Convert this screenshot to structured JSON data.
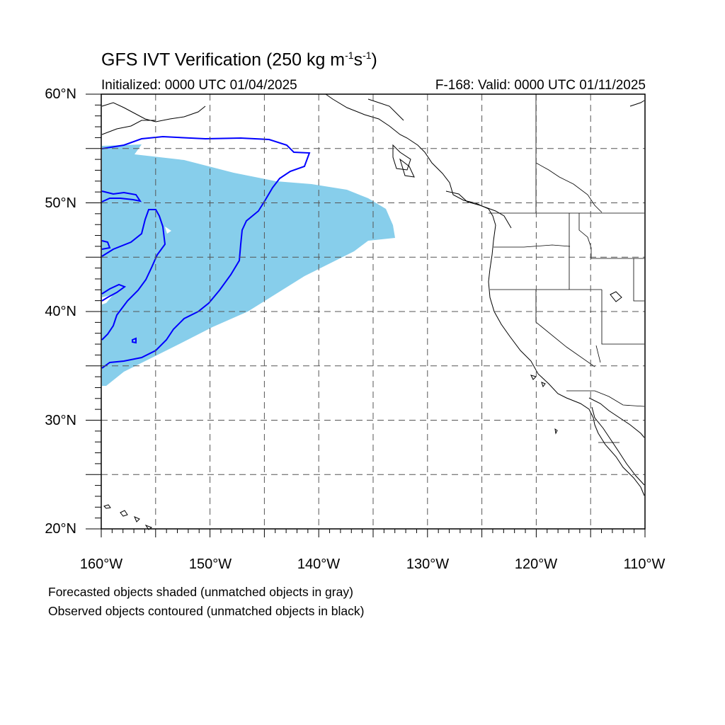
{
  "title": {
    "main": "GFS IVT Verification (250 kg m",
    "exp1": "-1",
    "mid": "s",
    "exp2": "-1",
    "end": ")"
  },
  "init_text": "Initialized: 0000 UTC 01/04/2025",
  "valid_text": "F-168: Valid: 0000 UTC 01/11/2025",
  "lat_labels": [
    "60°N",
    "50°N",
    "40°N",
    "30°N",
    "20°N"
  ],
  "lon_labels": [
    "160°W",
    "150°W",
    "140°W",
    "130°W",
    "120°W",
    "110°W"
  ],
  "footnotes": [
    "Forecasted objects shaded (unmatched objects in gray)",
    "Observed objects contoured (unmatched objects in black)"
  ],
  "map": {
    "lon_range": [
      -160,
      -110
    ],
    "lat_range": [
      20,
      60
    ],
    "gridline_lons": [
      -155,
      -150,
      -145,
      -140,
      -135,
      -130,
      -125,
      -120,
      -115
    ],
    "gridline_lats": [
      25,
      30,
      35,
      40,
      45,
      50,
      55
    ],
    "colors": {
      "forecast_fill": "#87ceeb",
      "observed_contour": "#0000ff",
      "coastline": "#000000"
    }
  }
}
